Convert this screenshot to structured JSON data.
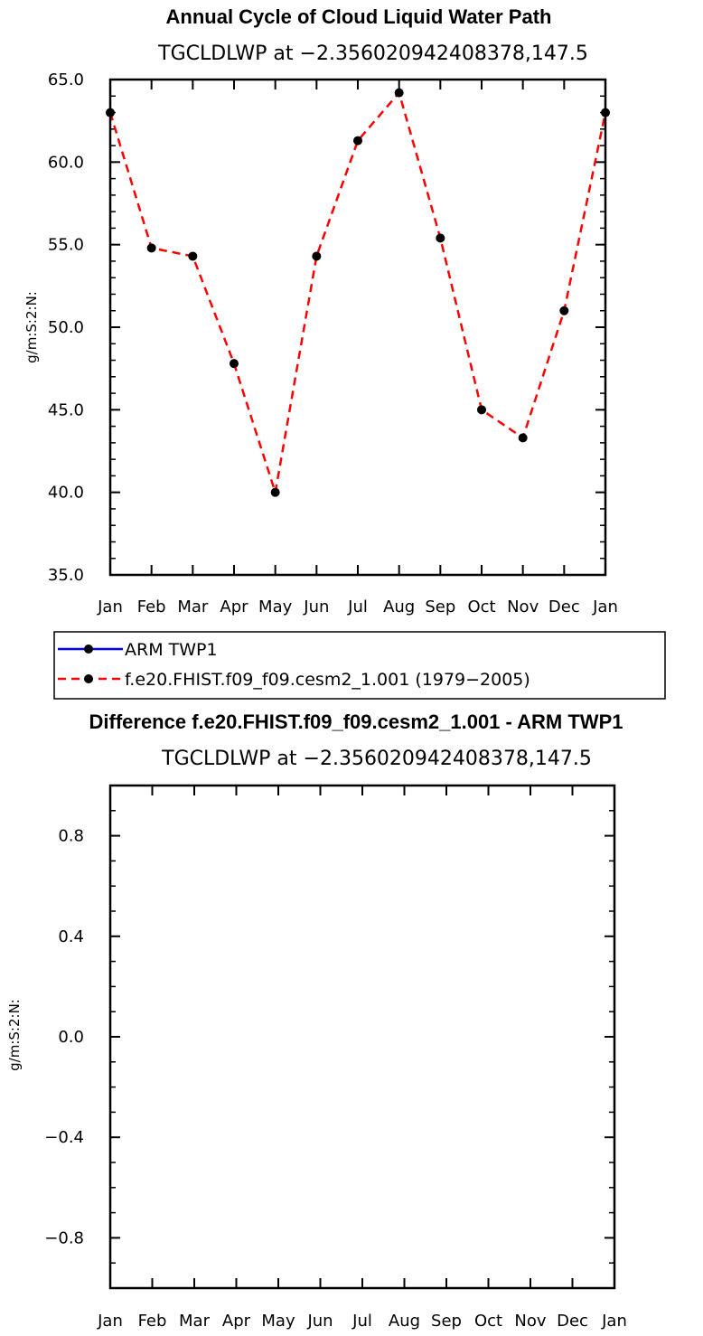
{
  "chart_data": [
    {
      "type": "line",
      "title": "Annual Cycle of Cloud Liquid Water Path",
      "subtitle": "TGCLDLWP at −2.356020942408378,147.5",
      "ylabel": "g/m:S:2:N:",
      "xlabel": "",
      "categories": [
        "Jan",
        "Feb",
        "Mar",
        "Apr",
        "May",
        "Jun",
        "Jul",
        "Aug",
        "Sep",
        "Oct",
        "Nov",
        "Dec",
        "Jan"
      ],
      "ylim": [
        35.0,
        65.0
      ],
      "yticks": [
        "35.0",
        "40.0",
        "45.0",
        "50.0",
        "55.0",
        "60.0",
        "65.0"
      ],
      "ytick_values": [
        35,
        40,
        45,
        50,
        55,
        60,
        65
      ],
      "series": [
        {
          "name": "f.e20.FHIST.f09_f09.cesm2_1.001 (1979−2005)",
          "color": "#ff0000",
          "style": "dashed",
          "values": [
            63.0,
            54.8,
            54.3,
            47.8,
            40.0,
            54.3,
            61.3,
            64.2,
            55.4,
            45.0,
            43.3,
            51.0,
            63.0
          ]
        }
      ]
    },
    {
      "type": "line",
      "title": "Difference f.e20.FHIST.f09_f09.cesm2_1.001 - ARM TWP1",
      "subtitle": "TGCLDLWP at −2.356020942408378,147.5",
      "ylabel": "g/m:S:2:N:",
      "xlabel": "",
      "categories": [
        "Jan",
        "Feb",
        "Mar",
        "Apr",
        "May",
        "Jun",
        "Jul",
        "Aug",
        "Sep",
        "Oct",
        "Nov",
        "Dec",
        "Jan"
      ],
      "ylim": [
        -1.0,
        1.0
      ],
      "yticks": [
        "0.8",
        "0.4",
        "0.0",
        "−0.4",
        "−0.8"
      ],
      "ytick_values": [
        0.8,
        0.4,
        0.0,
        -0.4,
        -0.8
      ],
      "series": []
    }
  ],
  "legend": {
    "items": [
      {
        "label": "ARM  TWP1",
        "color": "#0000ff",
        "style": "solid"
      },
      {
        "label": "f.e20.FHIST.f09_f09.cesm2_1.001 (1979−2005)",
        "color": "#ff0000",
        "style": "dashed"
      }
    ]
  }
}
